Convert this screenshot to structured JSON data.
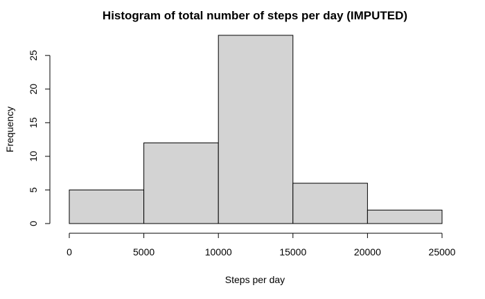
{
  "chart_data": {
    "type": "bar",
    "title": "Histogram of total number of steps per day (IMPUTED)",
    "xlabel": "Steps per day",
    "ylabel": "Frequency",
    "bins": [
      {
        "from": 0,
        "to": 5000,
        "count": 5
      },
      {
        "from": 5000,
        "to": 10000,
        "count": 12
      },
      {
        "from": 10000,
        "to": 15000,
        "count": 28
      },
      {
        "from": 15000,
        "to": 20000,
        "count": 6
      },
      {
        "from": 20000,
        "to": 25000,
        "count": 2
      }
    ],
    "xlim": [
      0,
      25000
    ],
    "ylim": [
      0,
      28
    ],
    "x_ticks": [
      0,
      5000,
      10000,
      15000,
      20000,
      25000
    ],
    "x_tick_labels": [
      "0",
      "5000",
      "10000",
      "15000",
      "20000",
      "25000"
    ],
    "y_ticks": [
      0,
      5,
      10,
      15,
      20,
      25
    ],
    "y_tick_labels": [
      "0",
      "5",
      "10",
      "15",
      "20",
      "25"
    ],
    "grid": false,
    "bar_fill": "#d3d3d3",
    "bar_stroke": "#000000"
  }
}
